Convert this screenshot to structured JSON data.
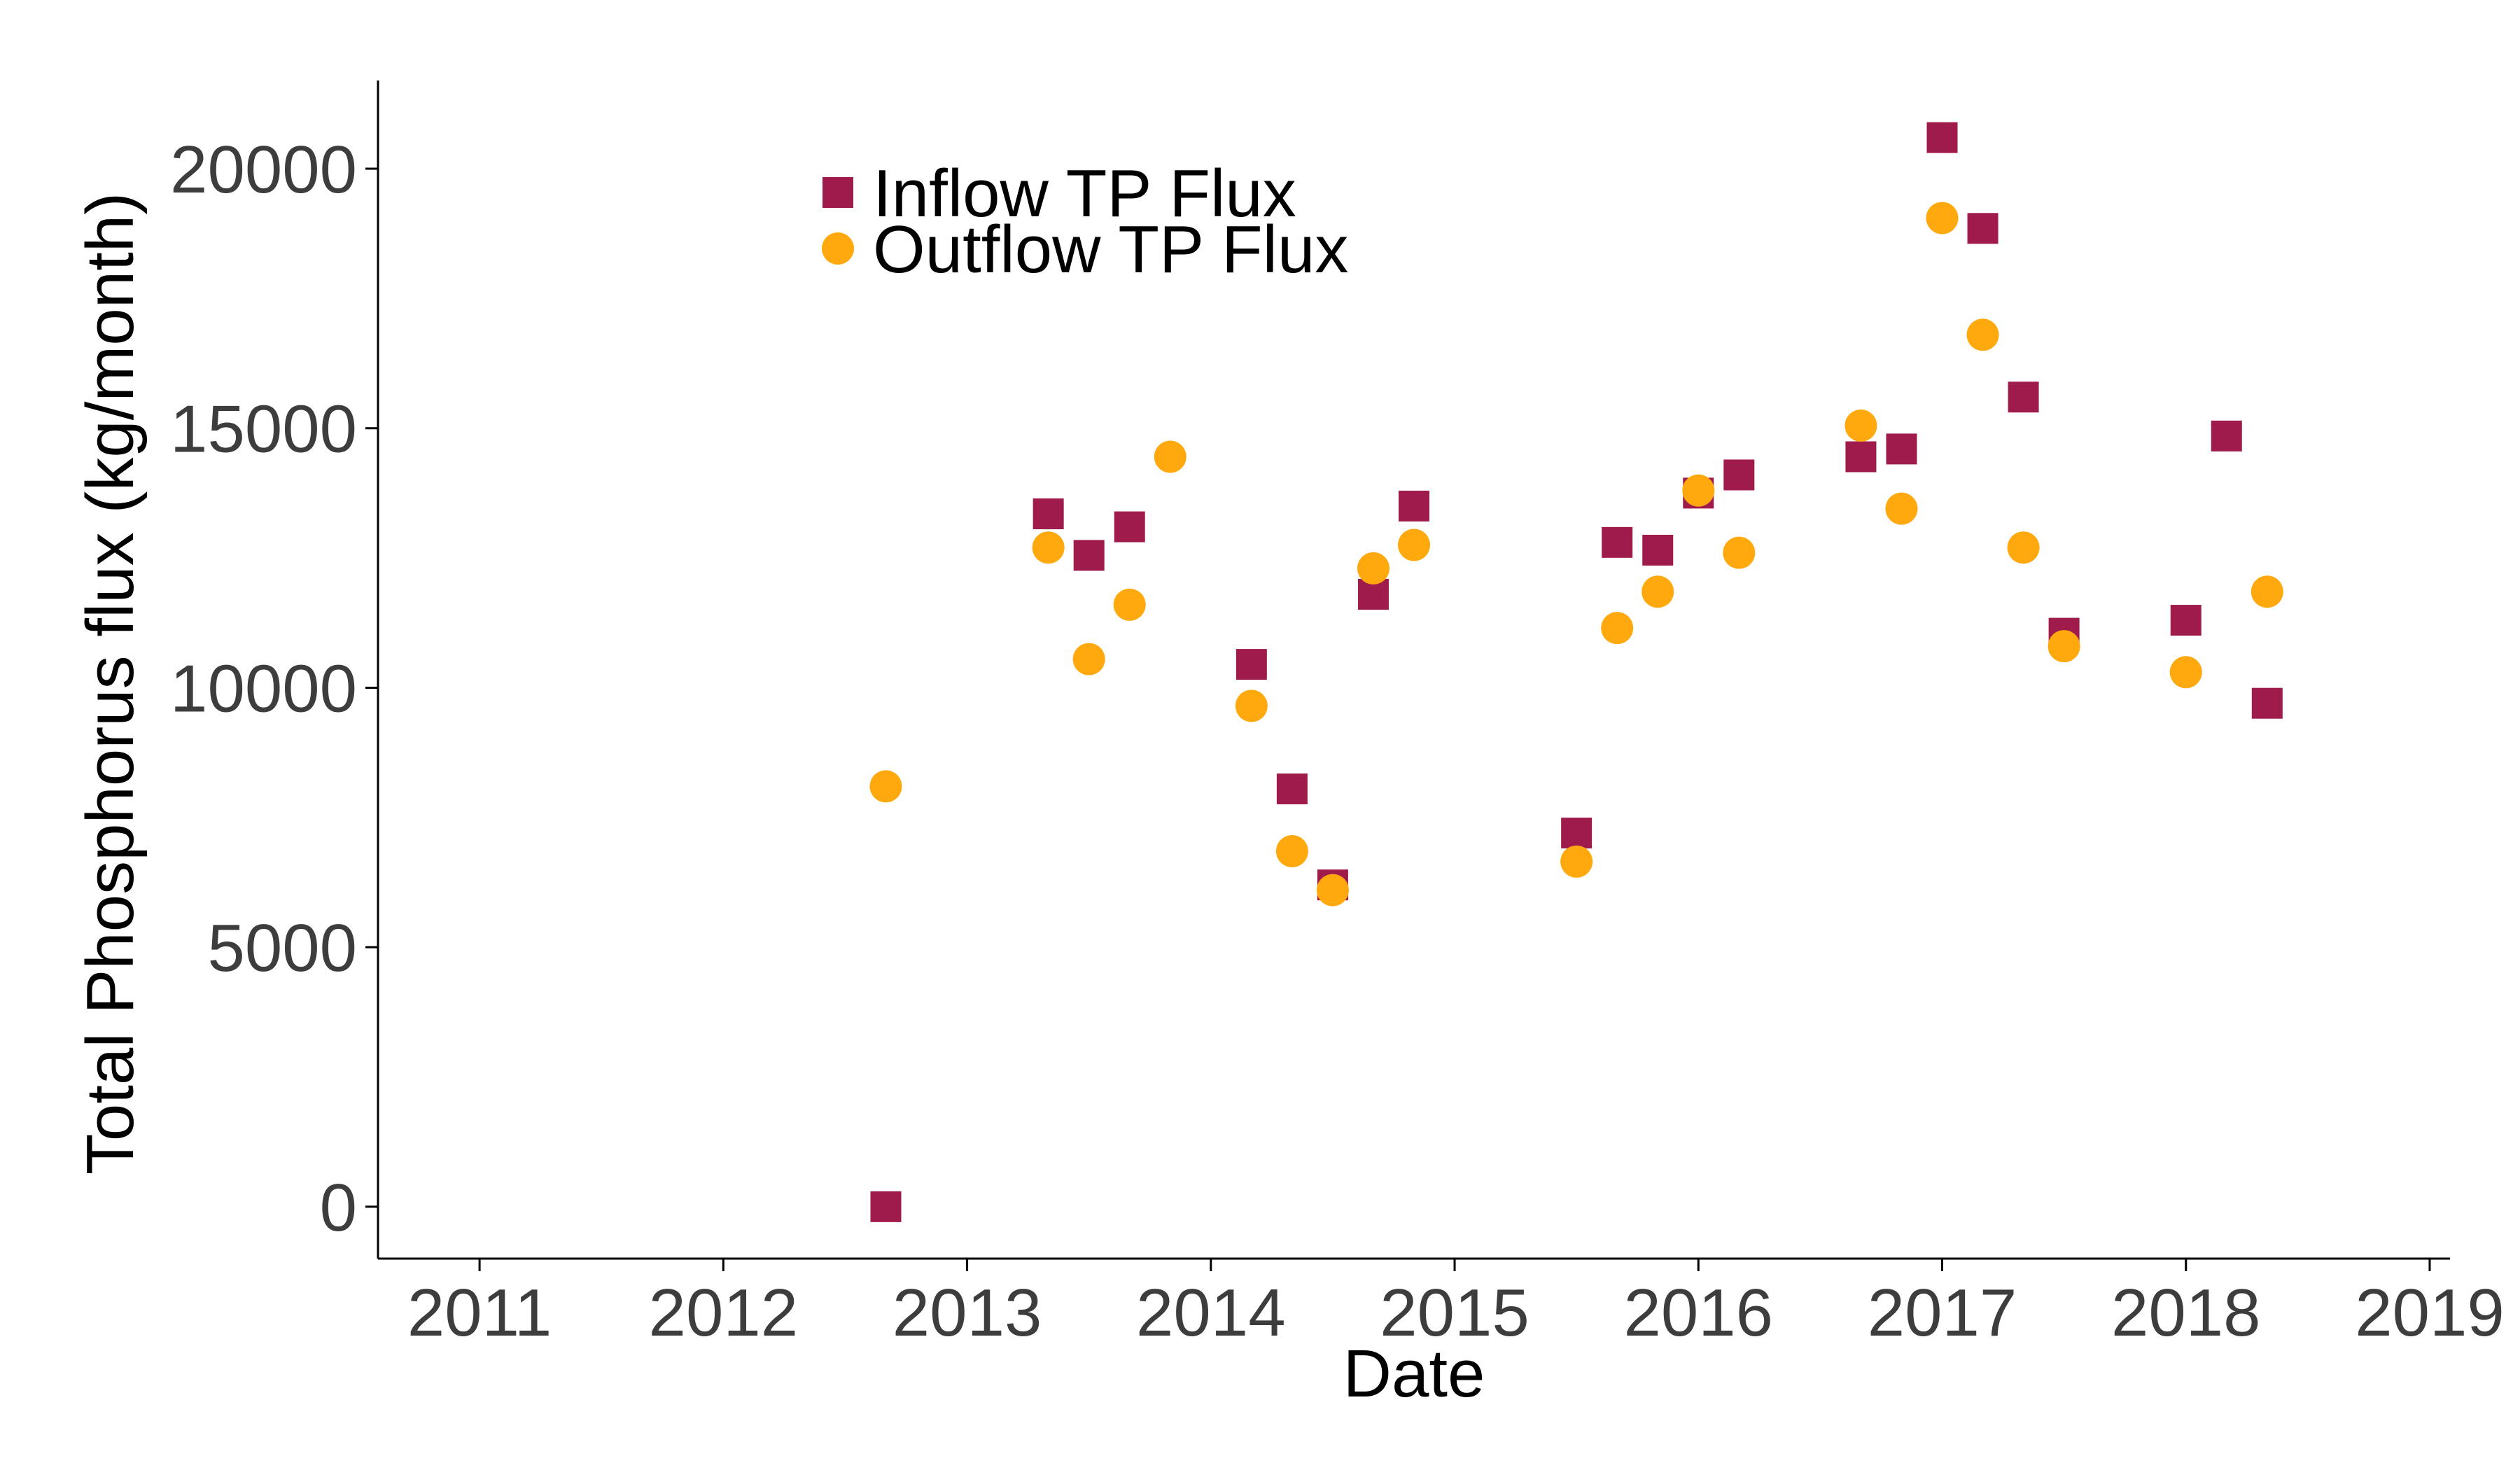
{
  "chart_data": {
    "type": "scatter",
    "title": "",
    "xlabel": "Date",
    "ylabel": "Total Phosphorus flux (kg/month)",
    "x_ticks": [
      "2011",
      "2012",
      "2013",
      "2014",
      "2015",
      "2016",
      "2017",
      "2018",
      "2019"
    ],
    "y_ticks": [
      "0",
      "5000",
      "10000",
      "15000",
      "20000"
    ],
    "xlim": [
      "2010-08",
      "2019-02"
    ],
    "ylim": [
      -1000,
      21700
    ],
    "grid": false,
    "legend_position": "top-left",
    "series": [
      {
        "name": "Inflow TP Flux",
        "marker": "square",
        "color": "#9e1b4b",
        "points": [
          {
            "x": "2012-09",
            "y": 0
          },
          {
            "x": "2013-05",
            "y": 13350
          },
          {
            "x": "2013-07",
            "y": 12550
          },
          {
            "x": "2013-09",
            "y": 13100
          },
          {
            "x": "2014-03",
            "y": 10450
          },
          {
            "x": "2014-05",
            "y": 8050
          },
          {
            "x": "2014-07",
            "y": 6200
          },
          {
            "x": "2014-09",
            "y": 11800
          },
          {
            "x": "2014-11",
            "y": 13500
          },
          {
            "x": "2015-07",
            "y": 7200
          },
          {
            "x": "2015-09",
            "y": 12800
          },
          {
            "x": "2015-11",
            "y": 12650
          },
          {
            "x": "2016-01",
            "y": 13750
          },
          {
            "x": "2016-03",
            "y": 14100
          },
          {
            "x": "2016-09",
            "y": 14450
          },
          {
            "x": "2016-11",
            "y": 14600
          },
          {
            "x": "2017-01",
            "y": 20600
          },
          {
            "x": "2017-03",
            "y": 18850
          },
          {
            "x": "2017-05",
            "y": 15600
          },
          {
            "x": "2017-07",
            "y": 11050
          },
          {
            "x": "2018-01",
            "y": 11300
          },
          {
            "x": "2018-03",
            "y": 14850
          },
          {
            "x": "2018-05",
            "y": 9700
          }
        ]
      },
      {
        "name": "Outflow TP Flux",
        "marker": "circle",
        "color": "#ffa90f",
        "points": [
          {
            "x": "2012-09",
            "y": 8100
          },
          {
            "x": "2013-05",
            "y": 12700
          },
          {
            "x": "2013-07",
            "y": 10550
          },
          {
            "x": "2013-09",
            "y": 11600
          },
          {
            "x": "2013-11",
            "y": 14450
          },
          {
            "x": "2014-03",
            "y": 9650
          },
          {
            "x": "2014-05",
            "y": 6850
          },
          {
            "x": "2014-07",
            "y": 6100
          },
          {
            "x": "2014-09",
            "y": 12300
          },
          {
            "x": "2014-11",
            "y": 12750
          },
          {
            "x": "2015-07",
            "y": 6650
          },
          {
            "x": "2015-09",
            "y": 11150
          },
          {
            "x": "2015-11",
            "y": 11850
          },
          {
            "x": "2016-01",
            "y": 13800
          },
          {
            "x": "2016-03",
            "y": 12600
          },
          {
            "x": "2016-09",
            "y": 15050
          },
          {
            "x": "2016-11",
            "y": 13450
          },
          {
            "x": "2017-01",
            "y": 19050
          },
          {
            "x": "2017-03",
            "y": 16800
          },
          {
            "x": "2017-05",
            "y": 12700
          },
          {
            "x": "2017-07",
            "y": 10800
          },
          {
            "x": "2018-01",
            "y": 10300
          },
          {
            "x": "2018-05",
            "y": 11850
          }
        ]
      }
    ]
  }
}
